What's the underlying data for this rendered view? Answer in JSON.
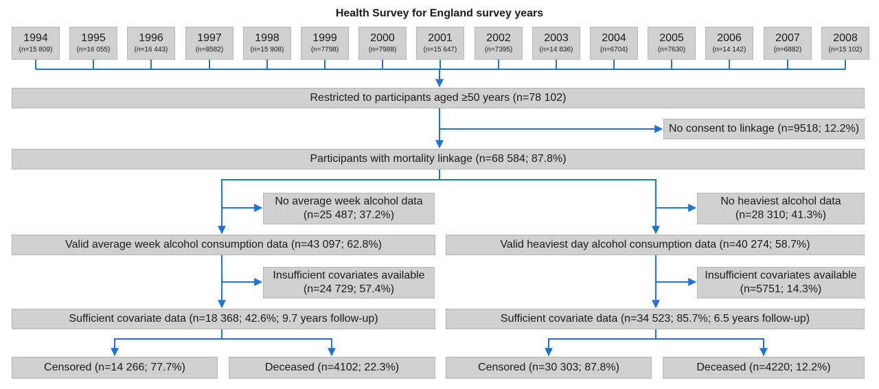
{
  "title": "Health Survey for England survey years",
  "years": [
    {
      "year": "1994",
      "n": "(n=15 809)"
    },
    {
      "year": "1995",
      "n": "(n=16 055)"
    },
    {
      "year": "1996",
      "n": "(n=16 443)"
    },
    {
      "year": "1997",
      "n": "(n=8582)"
    },
    {
      "year": "1998",
      "n": "(n=15 908)"
    },
    {
      "year": "1999",
      "n": "(n=7798)"
    },
    {
      "year": "2000",
      "n": "(n=7988)"
    },
    {
      "year": "2001",
      "n": "(n=15 647)"
    },
    {
      "year": "2002",
      "n": "(n=7395)"
    },
    {
      "year": "2003",
      "n": "(n=14 836)"
    },
    {
      "year": "2004",
      "n": "(n=6704)"
    },
    {
      "year": "2005",
      "n": "(n=7630)"
    },
    {
      "year": "2006",
      "n": "(n=14 142)"
    },
    {
      "year": "2007",
      "n": "(n=6882)"
    },
    {
      "year": "2008",
      "n": "(n=15 102)"
    }
  ],
  "restricted": "Restricted to participants aged ≥50 years (n=78 102)",
  "no_consent": "No consent to linkage (n=9518; 12.2%)",
  "linkage": "Participants with mortality linkage (n=68 584; 87.8%)",
  "left": {
    "excluded_1": [
      "No average week alcohol data",
      "(n=25 487; 37.2%)"
    ],
    "valid": "Valid average week alcohol consumption data (n=43 097; 62.8%)",
    "excluded_2": [
      "Insufficient covariates available",
      "(n=24 729; 57.4%)"
    ],
    "sufficient": "Sufficient covariate data (n=18 368; 42.6%; 9.7 years follow-up)",
    "censored": "Censored (n=14 266; 77.7%)",
    "deceased": "Deceased (n=4102; 22.3%)"
  },
  "right": {
    "excluded_1": [
      "No heaviest alcohol data",
      "(n=28 310; 41.3%)"
    ],
    "valid": "Valid heaviest day alcohol consumption data (n=40 274; 58.7%)",
    "excluded_2": [
      "Insufficient covariates available",
      "(n=5751; 14.3%)"
    ],
    "sufficient": "Sufficient covariate data (n=34 523; 85.7%; 6.5 years follow-up)",
    "censored": "Censored (n=30 303; 87.8%)",
    "deceased": "Deceased (n=4220; 12.2%)"
  },
  "colors": {
    "box": "#d0d0d0",
    "connector": "#1f73d6"
  }
}
